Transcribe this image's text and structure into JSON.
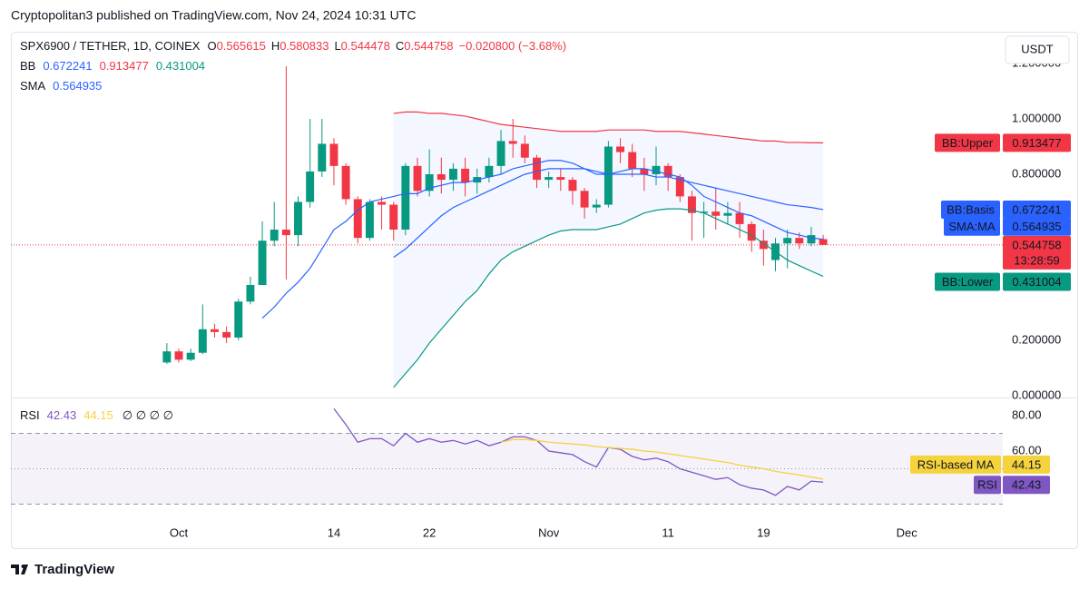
{
  "header": {
    "published": "Cryptopolitan3 published on TradingView.com, Nov 24, 2024 10:31 UTC",
    "brand": "TradingView"
  },
  "chart_data": {
    "type": "candlestick",
    "title": "SPX6900 / TETHER, 1D, COINEX",
    "ohlc_labels": [
      "O",
      "H",
      "L",
      "C"
    ],
    "change": "−0.020800 (−3.68%)",
    "currency": "USDT",
    "countdown": "13:28:59",
    "up_color": "#089981",
    "down_color": "#f23645",
    "x": [
      0,
      1,
      2,
      3,
      4,
      5,
      6,
      7,
      8,
      9,
      10,
      11,
      12,
      13,
      14,
      15,
      16,
      17,
      18,
      19,
      20,
      21,
      22,
      23,
      24,
      25,
      26,
      27,
      28,
      29,
      30,
      31,
      32,
      33,
      34,
      35,
      36,
      37,
      38,
      39,
      40,
      41,
      42,
      43,
      44,
      45,
      46,
      47,
      48,
      49,
      50,
      51,
      52,
      53,
      54,
      55
    ],
    "xlim": [
      -13.07,
      70.05
    ],
    "xticks": [
      {
        "value": 1,
        "label": "Oct"
      },
      14,
      22,
      {
        "value": 32,
        "label": "Nov"
      },
      {
        "value": 42,
        "label": "11"
      },
      {
        "value": 50,
        "label": "19"
      },
      {
        "value": 62,
        "label": "Dec"
      }
    ],
    "open": [
      0.12,
      0.16,
      0.13,
      0.155,
      0.24,
      0.23,
      0.21,
      0.34,
      0.4,
      0.56,
      0.6,
      0.58,
      0.7,
      0.81,
      0.91,
      0.83,
      0.71,
      0.57,
      0.7,
      0.69,
      0.6,
      0.83,
      0.74,
      0.8,
      0.78,
      0.82,
      0.77,
      0.79,
      0.83,
      0.92,
      0.91,
      0.86,
      0.78,
      0.79,
      0.78,
      0.74,
      0.68,
      0.69,
      0.9,
      0.88,
      0.82,
      0.8,
      0.83,
      0.79,
      0.72,
      0.66,
      0.665,
      0.65,
      0.66,
      0.62,
      0.56,
      0.49,
      0.55,
      0.57,
      0.55,
      0.565615
    ],
    "high": [
      0.19,
      0.17,
      0.17,
      0.33,
      0.26,
      0.25,
      0.35,
      0.43,
      0.63,
      0.7,
      1.19,
      0.72,
      1.0,
      1.0,
      0.93,
      0.84,
      0.72,
      0.71,
      0.72,
      0.7,
      0.84,
      0.86,
      0.89,
      0.86,
      0.84,
      0.86,
      0.82,
      0.86,
      0.96,
      1.0,
      0.94,
      0.87,
      0.81,
      0.82,
      0.79,
      0.75,
      0.71,
      0.92,
      0.93,
      0.91,
      0.86,
      0.9,
      0.84,
      0.8,
      0.74,
      0.7,
      0.75,
      0.7,
      0.7,
      0.63,
      0.6,
      0.57,
      0.6,
      0.59,
      0.61,
      0.580833
    ],
    "low": [
      0.115,
      0.12,
      0.125,
      0.15,
      0.21,
      0.19,
      0.2,
      0.33,
      0.4,
      0.54,
      0.42,
      0.54,
      0.68,
      0.79,
      0.76,
      0.69,
      0.55,
      0.56,
      0.6,
      0.56,
      0.58,
      0.72,
      0.72,
      0.73,
      0.74,
      0.72,
      0.73,
      0.77,
      0.8,
      0.86,
      0.84,
      0.75,
      0.75,
      0.74,
      0.69,
      0.64,
      0.66,
      0.68,
      0.84,
      0.79,
      0.74,
      0.76,
      0.74,
      0.7,
      0.56,
      0.57,
      0.6,
      0.62,
      0.57,
      0.52,
      0.47,
      0.45,
      0.46,
      0.53,
      0.54,
      0.544478
    ],
    "close": [
      0.16,
      0.13,
      0.155,
      0.24,
      0.23,
      0.21,
      0.34,
      0.4,
      0.56,
      0.6,
      0.58,
      0.7,
      0.81,
      0.91,
      0.83,
      0.71,
      0.57,
      0.7,
      0.69,
      0.6,
      0.83,
      0.74,
      0.8,
      0.78,
      0.82,
      0.77,
      0.79,
      0.83,
      0.92,
      0.91,
      0.86,
      0.78,
      0.79,
      0.78,
      0.74,
      0.68,
      0.69,
      0.9,
      0.88,
      0.82,
      0.8,
      0.83,
      0.79,
      0.72,
      0.66,
      0.665,
      0.65,
      0.66,
      0.62,
      0.56,
      0.53,
      0.55,
      0.57,
      0.55,
      0.58,
      0.544758
    ],
    "ylim": [
      -0.0066,
      1.3148
    ],
    "yticks": [
      {
        "value": 0,
        "label": "0.000000"
      },
      {
        "value": 0.2,
        "label": "0.200000"
      },
      {
        "value": 0.8,
        "label": "0.800000"
      },
      {
        "value": 1,
        "label": "1.000000"
      },
      {
        "value": 1.2,
        "label": "1.200000"
      }
    ],
    "bb": {
      "name": "BB",
      "fill": "#2962ff",
      "series": [
        {
          "name": "BB:Basis",
          "color": "#2962ff",
          "values": [
            null,
            null,
            null,
            null,
            null,
            null,
            null,
            null,
            null,
            null,
            null,
            null,
            null,
            null,
            null,
            null,
            null,
            null,
            null,
            0.5,
            0.53,
            0.57,
            0.61,
            0.65,
            0.68,
            0.7,
            0.72,
            0.74,
            0.76,
            0.78,
            0.8,
            0.81,
            0.82,
            0.82,
            0.82,
            0.82,
            0.81,
            0.8,
            0.8,
            0.8,
            0.8,
            0.79,
            0.79,
            0.78,
            0.77,
            0.76,
            0.75,
            0.74,
            0.73,
            0.72,
            0.71,
            0.7,
            0.69,
            0.685,
            0.68,
            0.672241
          ]
        },
        {
          "name": "BB:Upper",
          "color": "#f23645",
          "values": [
            null,
            null,
            null,
            null,
            null,
            null,
            null,
            null,
            null,
            null,
            null,
            null,
            null,
            null,
            null,
            null,
            null,
            null,
            null,
            1.02,
            1.025,
            1.025,
            1.02,
            1.02,
            1.015,
            1.01,
            1.0,
            0.99,
            0.98,
            0.975,
            0.97,
            0.965,
            0.96,
            0.955,
            0.955,
            0.955,
            0.955,
            0.96,
            0.96,
            0.96,
            0.96,
            0.955,
            0.955,
            0.955,
            0.95,
            0.945,
            0.94,
            0.935,
            0.93,
            0.925,
            0.92,
            0.92,
            0.915,
            0.915,
            0.914,
            0.913477
          ]
        },
        {
          "name": "BB:Lower",
          "color": "#089981",
          "values": [
            null,
            null,
            null,
            null,
            null,
            null,
            null,
            null,
            null,
            null,
            null,
            null,
            null,
            null,
            null,
            null,
            null,
            null,
            null,
            0.03,
            0.08,
            0.13,
            0.19,
            0.24,
            0.29,
            0.34,
            0.38,
            0.44,
            0.49,
            0.52,
            0.54,
            0.56,
            0.58,
            0.595,
            0.6,
            0.6,
            0.6,
            0.61,
            0.62,
            0.64,
            0.66,
            0.67,
            0.675,
            0.675,
            0.67,
            0.66,
            0.64,
            0.62,
            0.6,
            0.58,
            0.55,
            0.52,
            0.49,
            0.47,
            0.45,
            0.431004
          ]
        }
      ]
    },
    "sma": {
      "name": "SMA",
      "series": [
        {
          "name": "SMA:MA",
          "color": "#2962ff",
          "values": [
            null,
            null,
            null,
            null,
            null,
            null,
            null,
            null,
            0.28,
            0.32,
            0.37,
            0.41,
            0.46,
            0.53,
            0.6,
            0.63,
            0.67,
            0.7,
            0.71,
            0.72,
            0.73,
            0.73,
            0.75,
            0.76,
            0.77,
            0.77,
            0.78,
            0.79,
            0.8,
            0.82,
            0.83,
            0.84,
            0.85,
            0.85,
            0.84,
            0.82,
            0.8,
            0.8,
            0.81,
            0.82,
            0.82,
            0.81,
            0.8,
            0.79,
            0.76,
            0.72,
            0.7,
            0.68,
            0.66,
            0.65,
            0.63,
            0.61,
            0.59,
            0.58,
            0.57,
            0.564935
          ]
        }
      ]
    },
    "rsi": {
      "name": "RSI",
      "extra": "∅ ∅ ∅ ∅",
      "ylim": [
        22.56,
        90.26
      ],
      "yticks": [
        {
          "value": 80,
          "label": "80.00"
        },
        {
          "value": 60,
          "label": "60.00"
        }
      ],
      "bands": [
        70,
        50,
        30
      ],
      "band_color": "#7e57c2",
      "series": [
        {
          "name": "RSI",
          "color": "#7e57c2",
          "values": [
            null,
            null,
            null,
            null,
            null,
            null,
            null,
            null,
            null,
            null,
            null,
            null,
            null,
            null,
            84,
            75,
            65,
            67,
            67,
            63,
            70,
            65,
            67,
            65,
            66,
            64,
            66,
            63,
            65,
            68,
            68,
            66,
            60,
            59,
            58,
            54,
            51,
            62,
            61,
            57,
            55,
            56,
            54,
            50,
            48,
            46,
            44,
            45,
            41,
            39,
            38,
            35,
            40,
            38,
            43,
            42.43
          ]
        },
        {
          "name": "RSI-based MA",
          "color": "#f5d33d",
          "values": [
            null,
            null,
            null,
            null,
            null,
            null,
            null,
            null,
            null,
            null,
            null,
            null,
            null,
            null,
            null,
            null,
            null,
            null,
            null,
            null,
            null,
            null,
            null,
            null,
            null,
            null,
            null,
            null,
            65,
            66.5,
            66.5,
            66,
            65,
            64.5,
            64,
            63.5,
            62.5,
            62,
            61.5,
            61,
            60,
            59.5,
            58.5,
            57.5,
            56.5,
            55.5,
            54.5,
            53.5,
            52,
            51,
            50,
            48.5,
            47.5,
            46.5,
            45.3,
            44.15
          ]
        }
      ]
    }
  }
}
